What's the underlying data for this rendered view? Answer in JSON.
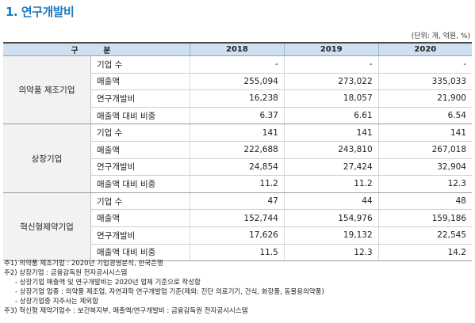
{
  "title": "1. 연구개발비",
  "unit": "(단위: 개, 억원, %)",
  "table": {
    "header": {
      "category": "구 분",
      "years": [
        "2018",
        "2019",
        "2020"
      ]
    },
    "groups": [
      {
        "name": "의약품 제조기업",
        "rows": [
          {
            "label": "기업 수",
            "values": [
              "-",
              "-",
              "-"
            ]
          },
          {
            "label": "매출액",
            "values": [
              "255,094",
              "273,022",
              "335,033"
            ]
          },
          {
            "label": "연구개발비",
            "values": [
              "16,238",
              "18,057",
              "21,900"
            ]
          },
          {
            "label": "매출액 대비 비중",
            "values": [
              "6.37",
              "6.61",
              "6.54"
            ]
          }
        ]
      },
      {
        "name": "상장기업",
        "rows": [
          {
            "label": "기업 수",
            "values": [
              "141",
              "141",
              "141"
            ]
          },
          {
            "label": "매출액",
            "values": [
              "222,688",
              "243,810",
              "267,018"
            ]
          },
          {
            "label": "연구개발비",
            "values": [
              "24,854",
              "27,424",
              "32,904"
            ]
          },
          {
            "label": "매출액 대비 비중",
            "values": [
              "11.2",
              "11.2",
              "12.3"
            ]
          }
        ]
      },
      {
        "name": "혁신형제약기업",
        "rows": [
          {
            "label": "기업 수",
            "values": [
              "47",
              "44",
              "48"
            ]
          },
          {
            "label": "매출액",
            "values": [
              "152,744",
              "154,976",
              "159,186"
            ]
          },
          {
            "label": "연구개발비",
            "values": [
              "17,626",
              "19,132",
              "22,545"
            ]
          },
          {
            "label": "매출액 대비 비중",
            "values": [
              "11.5",
              "12.3",
              "14.2"
            ]
          }
        ]
      }
    ]
  },
  "notes": [
    {
      "text": "주1) 의약품 제조기업 : 2020년 기업경영분석, 한국은행",
      "indent": false
    },
    {
      "text": "주2) 상장기업 : 금융감독원 전자공시시스템",
      "indent": false
    },
    {
      "text": "- 상장기업 매출액 및 연구개발비는 2020년 업체 기준으로 작성함",
      "indent": true
    },
    {
      "text": "- 상장기업 업종 : 의약품 제조업, 자연과학 연구개발업 기준(제외: 진단 의료기기, 건식, 화장품, 동물용의약품)",
      "indent": true
    },
    {
      "text": "- 상장기업중 지주사는 제외함",
      "indent": true
    },
    {
      "text": "주3) 혁신형 제약기업수 : 보건복지부, 매출액/연구개발비 : 금융감독원 전자공시시스템",
      "indent": false
    }
  ]
}
